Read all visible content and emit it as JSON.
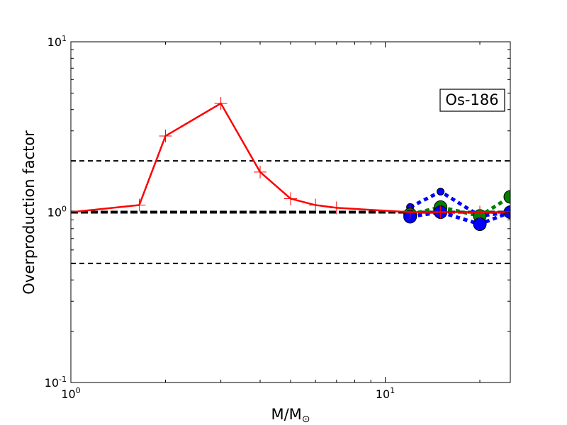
{
  "chart_data": {
    "type": "line",
    "xscale": "log",
    "yscale": "log",
    "xlim": [
      1,
      25
    ],
    "ylim": [
      0.1,
      10
    ],
    "xlabel": "M/M",
    "xlabel_sub": "⊙",
    "ylabel": "Overproduction factor",
    "x_ticks": [
      {
        "value": 1,
        "base": "10",
        "exp": "0"
      },
      {
        "value": 10,
        "base": "10",
        "exp": "1"
      }
    ],
    "y_ticks": [
      {
        "value": 0.1,
        "base": "10",
        "exp": "-1"
      },
      {
        "value": 1,
        "base": "10",
        "exp": "0"
      },
      {
        "value": 10,
        "base": "10",
        "exp": "1"
      }
    ],
    "annotation": "Os-186",
    "reference_lines": [
      {
        "y": 2.0,
        "style": "dashed",
        "width": 2
      },
      {
        "y": 1.0,
        "style": "dashed",
        "width": 4
      },
      {
        "y": 0.5,
        "style": "dashed",
        "width": 2
      }
    ],
    "series": [
      {
        "color": "#ff0000",
        "dash": "solid",
        "marker": "plus",
        "width": 2.5,
        "x": [
          1.0,
          1.65,
          2.0,
          3.0,
          4.0,
          5.0,
          6.0,
          7.0,
          12.0,
          15.0,
          20.0,
          25.0
        ],
        "y": [
          1.0,
          1.1,
          2.8,
          4.35,
          1.72,
          1.2,
          1.1,
          1.06,
          1.0,
          1.0,
          1.0,
          1.0
        ]
      },
      {
        "color": "#0000ff",
        "dash": "dotted",
        "marker": "circle",
        "marker_size": 5,
        "width": 5,
        "x": [
          12.0,
          15.0,
          20.0,
          25.0
        ],
        "y": [
          1.07,
          1.32,
          0.95,
          1.0
        ]
      },
      {
        "color": "#008000",
        "dash": "dotted",
        "marker": "circle",
        "marker_size": 9,
        "width": 5,
        "x": [
          12.0,
          15.0,
          20.0,
          25.0
        ],
        "y": [
          0.97,
          1.07,
          0.95,
          1.23
        ]
      },
      {
        "color": "#0000ff",
        "dash": "dotted",
        "marker": "circle",
        "marker_size": 9,
        "width": 5,
        "x": [
          12.0,
          15.0,
          20.0,
          25.0
        ],
        "y": [
          0.94,
          1.0,
          0.85,
          1.0
        ]
      }
    ]
  }
}
